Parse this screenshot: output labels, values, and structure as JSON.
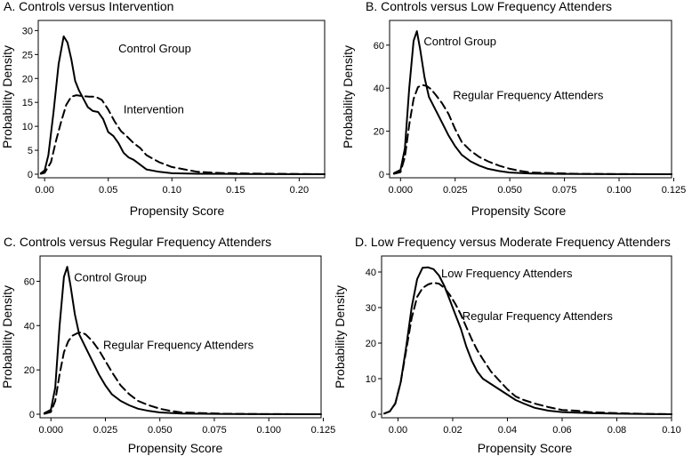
{
  "chart_data": [
    {
      "type": "line",
      "title": "A. Controls versus Intervention",
      "xlabel": "Propensity Score",
      "ylabel": "Probability Density",
      "xlim": [
        -0.005,
        0.22
      ],
      "ylim": [
        0,
        31
      ],
      "xticks": [
        0.0,
        0.05,
        0.1,
        0.15,
        0.2
      ],
      "xtick_labels": [
        "0.00",
        "0.05",
        "0.10",
        "0.15",
        "0.20"
      ],
      "yticks": [
        0,
        5,
        10,
        15,
        20,
        25,
        30
      ],
      "ytick_labels": [
        "0",
        "5",
        "10",
        "15",
        "20",
        "25",
        "30"
      ],
      "series": [
        {
          "name": "Control Group",
          "style": "solid",
          "x": [
            -0.003,
            0.0,
            0.003,
            0.007,
            0.011,
            0.015,
            0.018,
            0.021,
            0.024,
            0.027,
            0.03,
            0.034,
            0.038,
            0.042,
            0.046,
            0.05,
            0.054,
            0.058,
            0.062,
            0.066,
            0.07,
            0.075,
            0.08,
            0.09,
            0.1,
            0.12,
            0.15,
            0.18,
            0.22
          ],
          "y": [
            0.2,
            0.8,
            4,
            13,
            23,
            28.8,
            27.5,
            24,
            19.5,
            17.5,
            16,
            14,
            13.2,
            13,
            11.5,
            8.8,
            8,
            6.5,
            4.5,
            3.5,
            3,
            2,
            1,
            0.5,
            0.2,
            0.1,
            0.05,
            0.02,
            0
          ]
        },
        {
          "name": "Intervention",
          "style": "dashed",
          "x": [
            -0.003,
            0.0,
            0.005,
            0.009,
            0.013,
            0.017,
            0.021,
            0.025,
            0.03,
            0.035,
            0.04,
            0.045,
            0.05,
            0.055,
            0.06,
            0.065,
            0.07,
            0.075,
            0.08,
            0.09,
            0.1,
            0.11,
            0.12,
            0.14,
            0.16,
            0.2,
            0.22
          ],
          "y": [
            0.1,
            0.3,
            2.5,
            7,
            11,
            14.5,
            16.2,
            16.5,
            16.3,
            16.2,
            16.2,
            15.5,
            13.5,
            11,
            9,
            7.8,
            6.5,
            5.5,
            4,
            2.5,
            1.5,
            1,
            0.5,
            0.25,
            0.15,
            0.05,
            0
          ]
        }
      ],
      "annotations": [
        {
          "text": "Control Group",
          "at": [
            0.058,
            26.2
          ]
        },
        {
          "text": "Intervention",
          "at": [
            0.062,
            13.5
          ]
        }
      ]
    },
    {
      "type": "line",
      "title": "B. Controls versus Low Frequency Attenders",
      "xlabel": "Propensity Score",
      "ylabel": "Probability Density",
      "xlim": [
        -0.005,
        0.124
      ],
      "ylim": [
        0,
        69
      ],
      "xticks": [
        0.0,
        0.025,
        0.05,
        0.075,
        0.1,
        0.125
      ],
      "xtick_labels": [
        "0.000",
        "0.025",
        "0.050",
        "0.075",
        "0.100",
        "0.125"
      ],
      "yticks": [
        0,
        20,
        40,
        60
      ],
      "ytick_labels": [
        "0",
        "20",
        "40",
        "60"
      ],
      "series": [
        {
          "name": "Control Group",
          "style": "solid",
          "x": [
            -0.003,
            0.0,
            0.002,
            0.004,
            0.006,
            0.0075,
            0.009,
            0.011,
            0.013,
            0.016,
            0.019,
            0.022,
            0.025,
            0.028,
            0.032,
            0.036,
            0.04,
            0.045,
            0.05,
            0.06,
            0.08,
            0.1,
            0.124
          ],
          "y": [
            0.5,
            2,
            12,
            40,
            62,
            66.5,
            58,
            45,
            36,
            30,
            24,
            18,
            13,
            9,
            6,
            4,
            2.5,
            1.5,
            0.8,
            0.3,
            0.1,
            0.05,
            0
          ]
        },
        {
          "name": "Regular Frequency Attenders",
          "style": "dashed",
          "x": [
            -0.003,
            0.0,
            0.002,
            0.004,
            0.006,
            0.008,
            0.01,
            0.012,
            0.014,
            0.016,
            0.019,
            0.022,
            0.025,
            0.028,
            0.032,
            0.036,
            0.04,
            0.045,
            0.05,
            0.055,
            0.06,
            0.08,
            0.1,
            0.124
          ],
          "y": [
            0.2,
            1,
            8,
            23,
            35,
            40.5,
            41.5,
            41,
            39.5,
            37,
            33,
            28,
            21,
            15,
            11,
            8,
            6,
            4,
            2.5,
            1.5,
            0.8,
            0.2,
            0.05,
            0
          ]
        }
      ],
      "annotations": [
        {
          "text": "Control Group",
          "at": [
            0.0106,
            61.5
          ]
        },
        {
          "text": "Regular Frequency Attenders",
          "at": [
            0.024,
            36.5
          ]
        }
      ]
    },
    {
      "type": "line",
      "title": "C. Controls versus Regular Frequency Attenders",
      "xlabel": "Propensity Score",
      "ylabel": "Probability Density",
      "xlim": [
        -0.005,
        0.124
      ],
      "ylim": [
        0,
        69
      ],
      "xticks": [
        0.0,
        0.025,
        0.05,
        0.075,
        0.1,
        0.125
      ],
      "xtick_labels": [
        "0.000",
        "0.025",
        "0.050",
        "0.075",
        "0.100",
        "0.125"
      ],
      "yticks": [
        0,
        20,
        40,
        60
      ],
      "ytick_labels": [
        "0",
        "20",
        "40",
        "60"
      ],
      "series": [
        {
          "name": "Control Group",
          "style": "solid",
          "x": [
            -0.003,
            0.0,
            0.002,
            0.004,
            0.006,
            0.0075,
            0.009,
            0.011,
            0.013,
            0.016,
            0.019,
            0.022,
            0.025,
            0.028,
            0.032,
            0.036,
            0.04,
            0.045,
            0.05,
            0.06,
            0.08,
            0.1,
            0.124
          ],
          "y": [
            0.5,
            2,
            12,
            40,
            62,
            66.5,
            58,
            45,
            36,
            30,
            24,
            18,
            13,
            9,
            6,
            4,
            2.5,
            1.5,
            0.8,
            0.3,
            0.1,
            0.05,
            0
          ]
        },
        {
          "name": "Regular Frequency Attenders",
          "style": "dashed",
          "x": [
            -0.003,
            0.0,
            0.002,
            0.004,
            0.006,
            0.008,
            0.01,
            0.012,
            0.014,
            0.016,
            0.019,
            0.022,
            0.025,
            0.028,
            0.032,
            0.036,
            0.04,
            0.045,
            0.05,
            0.055,
            0.06,
            0.08,
            0.1,
            0.124
          ],
          "y": [
            0.2,
            1,
            6,
            18,
            28,
            33,
            35.5,
            36.5,
            37,
            36,
            33,
            29,
            24,
            19,
            13,
            9,
            6,
            4,
            2.5,
            1.5,
            0.8,
            0.2,
            0.05,
            0
          ]
        }
      ],
      "annotations": [
        {
          "text": "Control Group",
          "at": [
            0.0106,
            61.5
          ]
        },
        {
          "text": "Regular Frequency Attenders",
          "at": [
            0.024,
            31
          ]
        }
      ]
    },
    {
      "type": "line",
      "title": "D. Low Frequency versus Moderate Frequency Attenders",
      "xlabel": "Propensity Score",
      "ylabel": "Probability Density",
      "xlim": [
        -0.006,
        0.1
      ],
      "ylim": [
        0,
        43
      ],
      "xticks": [
        0.0,
        0.02,
        0.04,
        0.06,
        0.08,
        0.1
      ],
      "xtick_labels": [
        "0.00",
        "0.02",
        "0.04",
        "0.06",
        "0.08",
        "0.10"
      ],
      "yticks": [
        0,
        10,
        20,
        30,
        40
      ],
      "ytick_labels": [
        "0",
        "10",
        "20",
        "30",
        "40"
      ],
      "series": [
        {
          "name": "Low Frequency Attenders",
          "style": "solid",
          "x": [
            -0.005,
            -0.003,
            -0.001,
            0.001,
            0.003,
            0.005,
            0.007,
            0.009,
            0.011,
            0.013,
            0.015,
            0.017,
            0.019,
            0.021,
            0.023,
            0.025,
            0.027,
            0.029,
            0.031,
            0.034,
            0.037,
            0.04,
            0.043,
            0.046,
            0.05,
            0.055,
            0.06,
            0.07,
            0.08,
            0.09,
            0.1
          ],
          "y": [
            0.2,
            0.8,
            3,
            9,
            19,
            30,
            38,
            41.2,
            41.3,
            40.8,
            39,
            36,
            32,
            28,
            24,
            19,
            15,
            12,
            10,
            8.5,
            7,
            5.5,
            4,
            3,
            1.8,
            1,
            0.6,
            0.3,
            0.15,
            0.05,
            0
          ]
        },
        {
          "name": "Regular Frequency Attenders",
          "style": "dashed",
          "x": [
            -0.005,
            -0.003,
            -0.001,
            0.001,
            0.003,
            0.005,
            0.007,
            0.009,
            0.011,
            0.013,
            0.015,
            0.017,
            0.019,
            0.021,
            0.023,
            0.025,
            0.027,
            0.029,
            0.031,
            0.034,
            0.037,
            0.04,
            0.043,
            0.046,
            0.05,
            0.055,
            0.06,
            0.065,
            0.07,
            0.08,
            0.09,
            0.1
          ],
          "y": [
            0.2,
            0.8,
            3,
            9,
            18,
            27,
            33,
            35.5,
            36.5,
            37,
            36.7,
            35.5,
            33.5,
            31,
            28,
            24.5,
            21,
            18,
            15.5,
            12,
            9.5,
            7,
            5,
            4,
            3,
            2,
            1.2,
            1,
            0.6,
            0.3,
            0.1,
            0
          ]
        }
      ],
      "annotations": [
        {
          "text": "Low Frequency Attenders",
          "at": [
            0.0158,
            39.5
          ]
        },
        {
          "text": "Regular Frequency Attenders",
          "at": [
            0.0235,
            27.5
          ]
        }
      ]
    }
  ]
}
